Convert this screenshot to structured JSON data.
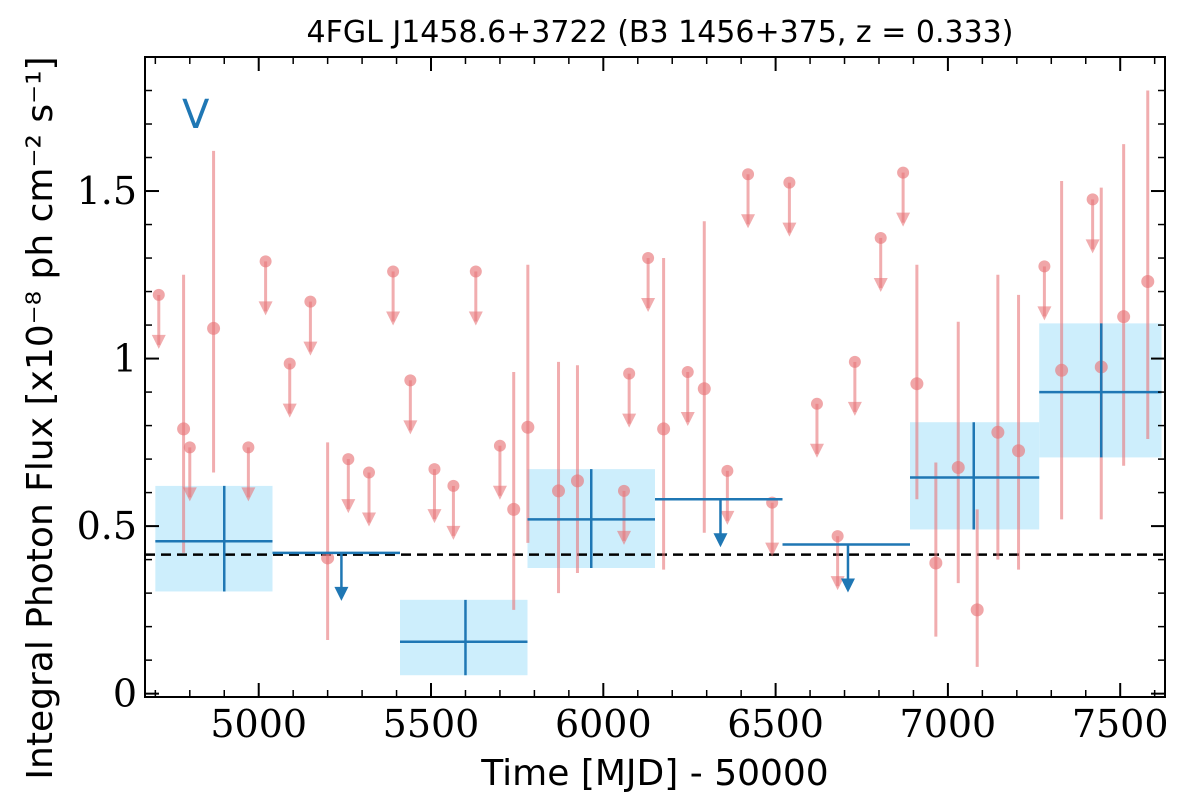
{
  "chart_data": {
    "type": "scatter",
    "title": "4FGL J1458.6+3722 (B3 1456+375, z = 0.333)",
    "xlabel": "Time [MJD] - 50000",
    "ylabel": "Integral Photon Flux [x10⁻⁸ ph cm⁻² s⁻¹]",
    "panel_label": "V",
    "xlim": [
      4670,
      7630
    ],
    "ylim": [
      -0.01,
      1.9
    ],
    "x_ticks": [
      {
        "value": 5000,
        "label": "5000"
      },
      {
        "value": 5500,
        "label": "5500"
      },
      {
        "value": 6000,
        "label": "6000"
      },
      {
        "value": 6500,
        "label": "6500"
      },
      {
        "value": 7000,
        "label": "7000"
      },
      {
        "value": 7500,
        "label": "7500"
      }
    ],
    "y_ticks": [
      {
        "value": 0,
        "label": "0"
      },
      {
        "value": 0.5,
        "label": "0.5"
      },
      {
        "value": 1,
        "label": "1"
      },
      {
        "value": 1.5,
        "label": "1.5"
      }
    ],
    "reference_line": {
      "y": 0.415,
      "style": "dashed",
      "color": "#000000"
    },
    "colors": {
      "points": "#e8767a",
      "bins": "#1f77b4",
      "bin_fill": "#cdeefc"
    },
    "short_bin_points": [
      {
        "x": 4782,
        "y": 0.79,
        "lo": 0.42,
        "hi": 1.25
      },
      {
        "x": 4869,
        "y": 1.09,
        "lo": 0.66,
        "hi": 1.62
      },
      {
        "x": 5200,
        "y": 0.405,
        "lo": 0.16,
        "hi": 0.75
      },
      {
        "x": 5740,
        "y": 0.55,
        "lo": 0.25,
        "hi": 0.96
      },
      {
        "x": 5781,
        "y": 0.795,
        "lo": 0.45,
        "hi": 1.28
      },
      {
        "x": 5870,
        "y": 0.605,
        "lo": 0.3,
        "hi": 0.99
      },
      {
        "x": 5925,
        "y": 0.635,
        "lo": 0.36,
        "hi": 0.98
      },
      {
        "x": 6175,
        "y": 0.79,
        "lo": 0.37,
        "hi": 1.3
      },
      {
        "x": 6293,
        "y": 0.91,
        "lo": 0.48,
        "hi": 1.41
      },
      {
        "x": 6910,
        "y": 0.925,
        "lo": 0.58,
        "hi": 1.28
      },
      {
        "x": 6965,
        "y": 0.39,
        "lo": 0.17,
        "hi": 0.69
      },
      {
        "x": 7030,
        "y": 0.675,
        "lo": 0.33,
        "hi": 1.11
      },
      {
        "x": 7085,
        "y": 0.25,
        "lo": 0.08,
        "hi": 0.55
      },
      {
        "x": 7145,
        "y": 0.78,
        "lo": 0.4,
        "hi": 1.25
      },
      {
        "x": 7205,
        "y": 0.725,
        "lo": 0.37,
        "hi": 1.19
      },
      {
        "x": 7330,
        "y": 0.965,
        "lo": 0.52,
        "hi": 1.53
      },
      {
        "x": 7445,
        "y": 0.975,
        "lo": 0.52,
        "hi": 1.51
      },
      {
        "x": 7510,
        "y": 1.125,
        "lo": 0.68,
        "hi": 1.64
      },
      {
        "x": 7580,
        "y": 1.23,
        "lo": 0.76,
        "hi": 1.8
      }
    ],
    "short_bin_upper_limits": [
      {
        "x": 4710,
        "y": 1.19
      },
      {
        "x": 4800,
        "y": 0.735
      },
      {
        "x": 4970,
        "y": 0.735
      },
      {
        "x": 5020,
        "y": 1.29
      },
      {
        "x": 5090,
        "y": 0.985
      },
      {
        "x": 5150,
        "y": 1.17
      },
      {
        "x": 5260,
        "y": 0.7
      },
      {
        "x": 5320,
        "y": 0.66
      },
      {
        "x": 5390,
        "y": 1.26
      },
      {
        "x": 5440,
        "y": 0.935
      },
      {
        "x": 5510,
        "y": 0.67
      },
      {
        "x": 5565,
        "y": 0.62
      },
      {
        "x": 5630,
        "y": 1.26
      },
      {
        "x": 5700,
        "y": 0.74
      },
      {
        "x": 6060,
        "y": 0.605
      },
      {
        "x": 6075,
        "y": 0.955
      },
      {
        "x": 6130,
        "y": 1.3
      },
      {
        "x": 6245,
        "y": 0.96
      },
      {
        "x": 6360,
        "y": 0.665
      },
      {
        "x": 6420,
        "y": 1.55
      },
      {
        "x": 6490,
        "y": 0.57
      },
      {
        "x": 6540,
        "y": 1.525
      },
      {
        "x": 6620,
        "y": 0.865
      },
      {
        "x": 6680,
        "y": 0.47
      },
      {
        "x": 6730,
        "y": 0.99
      },
      {
        "x": 6805,
        "y": 1.36
      },
      {
        "x": 6870,
        "y": 1.555
      },
      {
        "x": 7280,
        "y": 1.275
      },
      {
        "x": 7420,
        "y": 1.475
      }
    ],
    "long_bins": [
      {
        "x": 4900,
        "xmin": 4700,
        "xmax": 5040,
        "y": 0.455,
        "ylo": 0.305,
        "yhi": 0.62,
        "upper_limit": false
      },
      {
        "x": 5240,
        "xmin": 5040,
        "xmax": 5410,
        "y": 0.42,
        "upper_limit": true
      },
      {
        "x": 5600,
        "xmin": 5410,
        "xmax": 5780,
        "y": 0.155,
        "ylo": 0.055,
        "yhi": 0.28,
        "upper_limit": false
      },
      {
        "x": 5965,
        "xmin": 5780,
        "xmax": 6150,
        "y": 0.52,
        "ylo": 0.375,
        "yhi": 0.67,
        "upper_limit": false
      },
      {
        "x": 6340,
        "xmin": 6150,
        "xmax": 6520,
        "y": 0.58,
        "upper_limit": true
      },
      {
        "x": 6710,
        "xmin": 6520,
        "xmax": 6890,
        "y": 0.445,
        "upper_limit": true
      },
      {
        "x": 7075,
        "xmin": 6890,
        "xmax": 7265,
        "y": 0.645,
        "ylo": 0.49,
        "yhi": 0.81,
        "upper_limit": false
      },
      {
        "x": 7445,
        "xmin": 7265,
        "xmax": 7620,
        "y": 0.9,
        "ylo": 0.705,
        "yhi": 1.105,
        "upper_limit": false
      }
    ]
  }
}
